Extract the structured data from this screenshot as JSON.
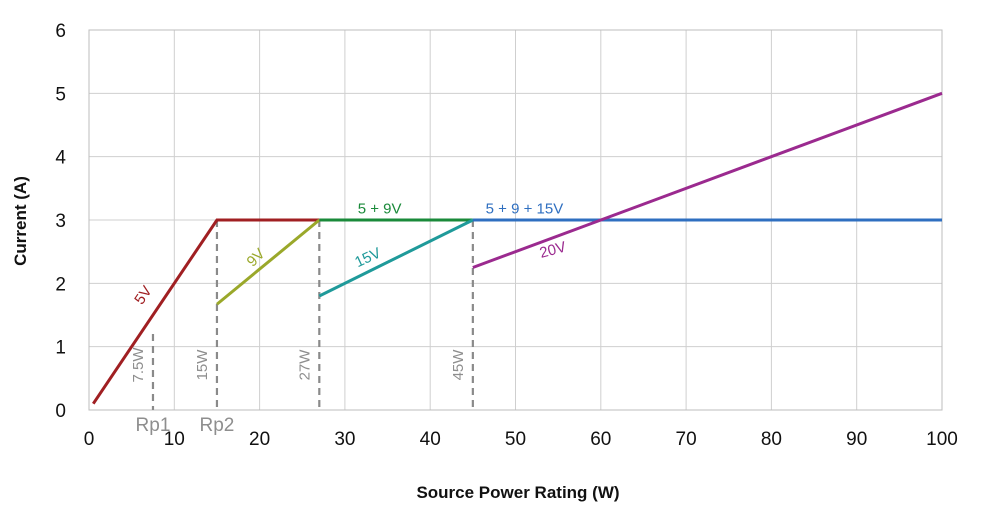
{
  "chart_data": {
    "type": "line",
    "title": "",
    "xlabel": "Source Power Rating (W)",
    "ylabel": "Current (A)",
    "xlim": [
      0,
      100
    ],
    "ylim": [
      0,
      6
    ],
    "xticks": [
      0,
      10,
      20,
      30,
      40,
      50,
      60,
      70,
      80,
      90,
      100
    ],
    "yticks": [
      0,
      1,
      2,
      3,
      4,
      5,
      6
    ],
    "grid": true,
    "series": [
      {
        "name": "5V",
        "color": "#a01f22",
        "points": [
          [
            0.5,
            0.1
          ],
          [
            15,
            3
          ],
          [
            27,
            3
          ]
        ]
      },
      {
        "name": "9V",
        "color": "#9aa82a",
        "points": [
          [
            15,
            1.67
          ],
          [
            27,
            3
          ]
        ]
      },
      {
        "name": "5 + 9V",
        "color": "#1a8a3a",
        "points": [
          [
            27,
            3
          ],
          [
            45,
            3
          ]
        ]
      },
      {
        "name": "15V",
        "color": "#1f9a9a",
        "points": [
          [
            27,
            1.8
          ],
          [
            45,
            3
          ]
        ]
      },
      {
        "name": "5 + 9 + 15V",
        "color": "#2f6fc0",
        "points": [
          [
            45,
            3
          ],
          [
            100,
            3
          ]
        ]
      },
      {
        "name": "20V",
        "color": "#9b2a8f",
        "points": [
          [
            45,
            2.25
          ],
          [
            100,
            5
          ]
        ]
      }
    ],
    "series_labels": [
      {
        "text": "5V",
        "x": 6.2,
        "y": 1.65,
        "rotate": -55,
        "color": "#a01f22"
      },
      {
        "text": "9V",
        "x": 19.2,
        "y": 2.25,
        "rotate": -45,
        "color": "#9aa82a"
      },
      {
        "text": "5 + 9V",
        "x": 31.5,
        "y": 3.1,
        "rotate": 0,
        "color": "#1a8a3a"
      },
      {
        "text": "15V",
        "x": 31.5,
        "y": 2.25,
        "rotate": -25,
        "color": "#1f9a9a"
      },
      {
        "text": "5 + 9 + 15V",
        "x": 46.5,
        "y": 3.1,
        "rotate": 0,
        "color": "#2f6fc0"
      },
      {
        "text": "20V",
        "x": 53,
        "y": 2.4,
        "rotate": -15,
        "color": "#9b2a8f"
      }
    ],
    "markers": [
      {
        "x": 7.5,
        "ytop": 1.2,
        "label": "7.5W"
      },
      {
        "x": 15,
        "ytop": 3,
        "label": "15W"
      },
      {
        "x": 27,
        "ytop": 3,
        "label": "27W"
      },
      {
        "x": 45,
        "ytop": 3,
        "label": "45W"
      }
    ],
    "rp_labels": [
      {
        "text": "Rp1",
        "x": 7.5
      },
      {
        "text": "Rp2",
        "x": 15
      }
    ]
  }
}
